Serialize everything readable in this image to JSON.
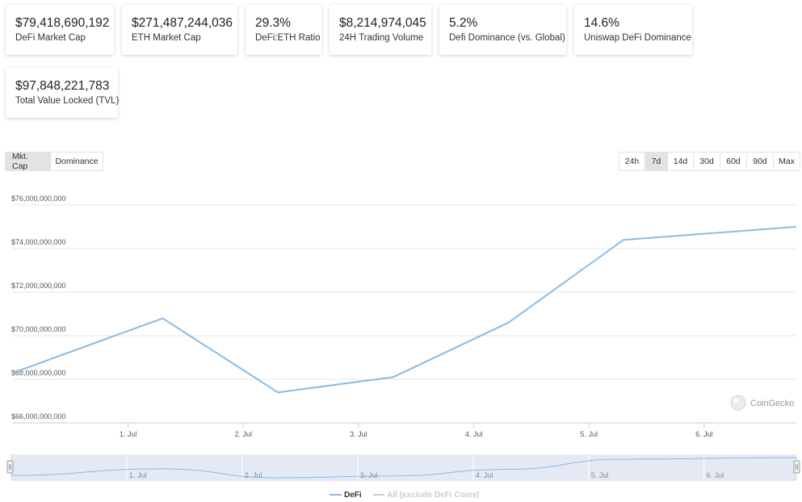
{
  "stats": [
    {
      "value": "$79,418,690,192",
      "label": "DeFi Market Cap"
    },
    {
      "value": "$271,487,244,036",
      "label": "ETH Market Cap"
    },
    {
      "value": "29.3%",
      "label": "DeFi:ETH Ratio"
    },
    {
      "value": "$8,214,974,045",
      "label": "24H Trading Volume"
    },
    {
      "value": "5.2%",
      "label": "Defi Dominance (vs. Global)"
    },
    {
      "value": "14.6%",
      "label": "Uniswap DeFi Dominance"
    },
    {
      "value": "$97,848,221,783",
      "label": "Total Value Locked (TVL)"
    }
  ],
  "view_toggle": {
    "options": [
      "Mkt. Cap",
      "Dominance"
    ],
    "selected": "Mkt. Cap"
  },
  "range_buttons": {
    "options": [
      "24h",
      "7d",
      "14d",
      "30d",
      "60d",
      "90d",
      "Max"
    ],
    "selected": "7d"
  },
  "credit": "CoinGecko",
  "colors": {
    "defi_line": "#8cbae2",
    "grid": "#e6e6e6",
    "active_button": "#e3e3e3",
    "navigator_mask": "#dfe5f2"
  },
  "chart_data": {
    "type": "line",
    "title": "",
    "xlabel": "",
    "ylabel": "",
    "ylim": [
      66000000000,
      76000000000
    ],
    "yticks": [
      {
        "value": 76000000000,
        "label": "$76,000,000,000"
      },
      {
        "value": 74000000000,
        "label": "$74,000,000,000"
      },
      {
        "value": 72000000000,
        "label": "$72,000,000,000"
      },
      {
        "value": 70000000000,
        "label": "$70,000,000,000"
      },
      {
        "value": 68000000000,
        "label": "$68,000,000,000"
      },
      {
        "value": 66000000000,
        "label": "$66,000,000,000"
      }
    ],
    "xlim": [
      -0.5,
      6.3
    ],
    "xticks": [
      {
        "value": 0.5,
        "label": "1. Jul"
      },
      {
        "value": 1.5,
        "label": "2. Jul"
      },
      {
        "value": 2.5,
        "label": "3. Jul"
      },
      {
        "value": 3.5,
        "label": "4. Jul"
      },
      {
        "value": 4.5,
        "label": "5. Jul"
      },
      {
        "value": 5.5,
        "label": "6. Jul"
      }
    ],
    "series": [
      {
        "name": "DeFi",
        "visible": true,
        "x": [
          -0.5,
          0.8,
          1.8,
          2.8,
          3.8,
          4.8,
          6.3
        ],
        "values": [
          68300000000,
          70800000000,
          67400000000,
          68100000000,
          70600000000,
          74400000000,
          75000000000
        ]
      },
      {
        "name": "All (exclude DeFi Coins)",
        "visible": false,
        "x": [],
        "values": []
      }
    ],
    "grid": true,
    "legend": "bottom-center"
  }
}
